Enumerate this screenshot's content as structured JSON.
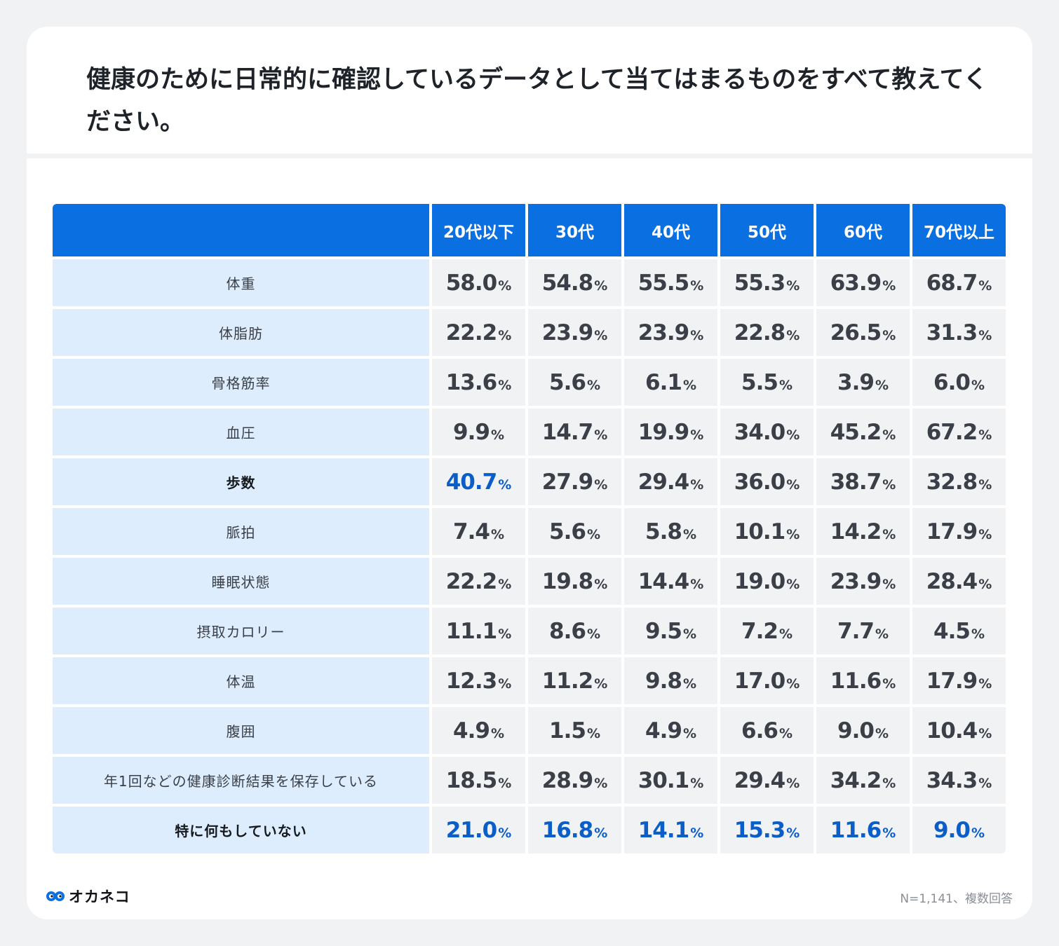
{
  "title": "健康のために日常的に確認しているデータとして当てはまるものをすべて教えてください。",
  "chart_data": {
    "type": "table",
    "columns": [
      "20代以下",
      "30代",
      "40代",
      "50代",
      "60代",
      "70代以上"
    ],
    "unit": "%",
    "rows": [
      {
        "label": "体重",
        "values": [
          "58.0",
          "54.8",
          "55.5",
          "55.3",
          "63.9",
          "68.7"
        ],
        "highlight": false
      },
      {
        "label": "体脂肪",
        "values": [
          "22.2",
          "23.9",
          "23.9",
          "22.8",
          "26.5",
          "31.3"
        ],
        "highlight": false
      },
      {
        "label": "骨格筋率",
        "values": [
          "13.6",
          "5.6",
          "6.1",
          "5.5",
          "3.9",
          "6.0"
        ],
        "highlight": false
      },
      {
        "label": "血圧",
        "values": [
          "9.9",
          "14.7",
          "19.9",
          "34.0",
          "45.2",
          "67.2"
        ],
        "highlight": false
      },
      {
        "label": "歩数",
        "values": [
          "40.7",
          "27.9",
          "29.4",
          "36.0",
          "38.7",
          "32.8"
        ],
        "highlight": true,
        "highlight_cols": [
          0
        ]
      },
      {
        "label": "脈拍",
        "values": [
          "7.4",
          "5.6",
          "5.8",
          "10.1",
          "14.2",
          "17.9"
        ],
        "highlight": false
      },
      {
        "label": "睡眠状態",
        "values": [
          "22.2",
          "19.8",
          "14.4",
          "19.0",
          "23.9",
          "28.4"
        ],
        "highlight": false
      },
      {
        "label": "摂取カロリー",
        "values": [
          "11.1",
          "8.6",
          "9.5",
          "7.2",
          "7.7",
          "4.5"
        ],
        "highlight": false
      },
      {
        "label": "体温",
        "values": [
          "12.3",
          "11.2",
          "9.8",
          "17.0",
          "11.6",
          "17.9"
        ],
        "highlight": false
      },
      {
        "label": "腹囲",
        "values": [
          "4.9",
          "1.5",
          "4.9",
          "6.6",
          "9.0",
          "10.4"
        ],
        "highlight": false
      },
      {
        "label": "年1回などの健康診断結果を保存している",
        "values": [
          "18.5",
          "28.9",
          "30.1",
          "29.4",
          "34.2",
          "34.3"
        ],
        "highlight": false
      },
      {
        "label": "特に何もしていない",
        "values": [
          "21.0",
          "16.8",
          "14.1",
          "15.3",
          "11.6",
          "9.0"
        ],
        "highlight": true,
        "highlight_cols": [
          0,
          1,
          2,
          3,
          4,
          5
        ]
      }
    ],
    "colors": {
      "header": "#0a6fe0",
      "label_bg": "#ddedfd",
      "value_bg": "#f1f2f4",
      "highlight_text": "#0b5ec8"
    }
  },
  "logo": {
    "text": "オカネコ",
    "icon": "okaneko-mark-icon"
  },
  "note": "N=1,141、複数回答"
}
